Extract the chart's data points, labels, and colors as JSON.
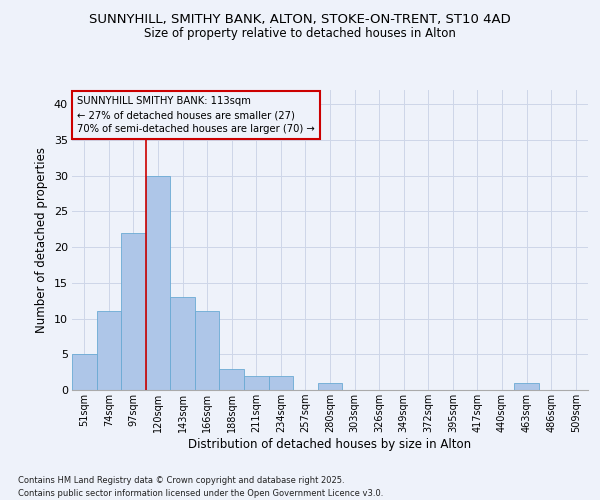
{
  "title1": "SUNNYHILL, SMITHY BANK, ALTON, STOKE-ON-TRENT, ST10 4AD",
  "title2": "Size of property relative to detached houses in Alton",
  "xlabel": "Distribution of detached houses by size in Alton",
  "ylabel": "Number of detached properties",
  "categories": [
    "51sqm",
    "74sqm",
    "97sqm",
    "120sqm",
    "143sqm",
    "166sqm",
    "188sqm",
    "211sqm",
    "234sqm",
    "257sqm",
    "280sqm",
    "303sqm",
    "326sqm",
    "349sqm",
    "372sqm",
    "395sqm",
    "417sqm",
    "440sqm",
    "463sqm",
    "486sqm",
    "509sqm"
  ],
  "values": [
    5,
    11,
    22,
    30,
    13,
    11,
    3,
    2,
    2,
    0,
    1,
    0,
    0,
    0,
    0,
    0,
    0,
    0,
    1,
    0,
    0
  ],
  "bar_color": "#aec6e8",
  "bar_edge_color": "#6aaad4",
  "vline_color": "#cc0000",
  "vline_x_index": 3,
  "ylim": [
    0,
    42
  ],
  "yticks": [
    0,
    5,
    10,
    15,
    20,
    25,
    30,
    35,
    40
  ],
  "annotation_title": "SUNNYHILL SMITHY BANK: 113sqm",
  "annotation_line1": "← 27% of detached houses are smaller (27)",
  "annotation_line2": "70% of semi-detached houses are larger (70) →",
  "annotation_box_color": "#cc0000",
  "grid_color": "#cdd6e8",
  "bg_color": "#eef2fa",
  "footnote1": "Contains HM Land Registry data © Crown copyright and database right 2025.",
  "footnote2": "Contains public sector information licensed under the Open Government Licence v3.0."
}
